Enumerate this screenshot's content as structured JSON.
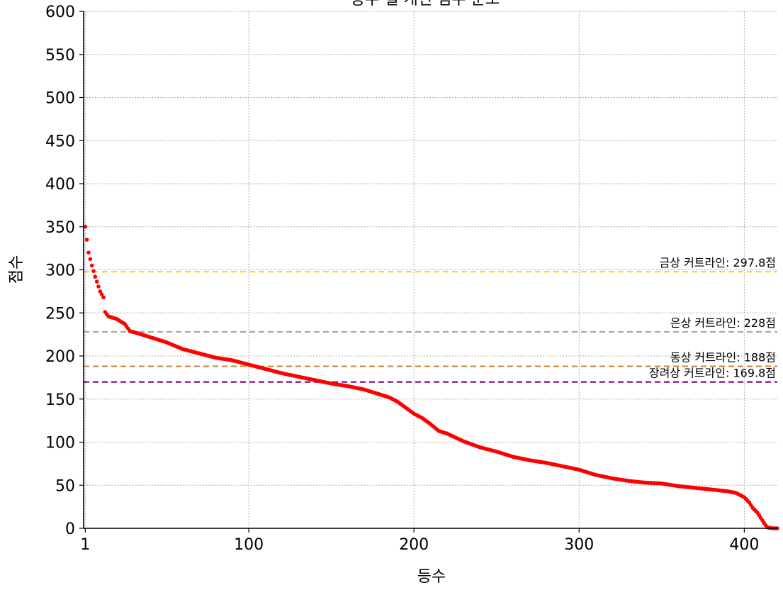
{
  "chart_data": {
    "type": "scatter",
    "title": "등수 별 개인 점수 분포",
    "xlabel": "등수",
    "ylabel": "점수",
    "xlim": [
      0,
      420
    ],
    "ylim": [
      0,
      600
    ],
    "x_ticks": [
      1,
      100,
      200,
      300,
      400
    ],
    "y_ticks": [
      0,
      50,
      100,
      150,
      200,
      250,
      300,
      350,
      400,
      450,
      500,
      550,
      600
    ],
    "grid": true,
    "point_color": "#ff0000",
    "reference_lines": [
      {
        "label": "금상 커트라인: 297.8점",
        "value": 297.8,
        "color": "#ffd700"
      },
      {
        "label": "은상 커트라인: 228점",
        "value": 228,
        "color": "#a9a9a9"
      },
      {
        "label": "동상 커트라인: 188점",
        "value": 188,
        "color": "#cd853f"
      },
      {
        "label": "장려상 커트라인: 169.8점",
        "value": 169.8,
        "color": "#800080"
      }
    ],
    "curve_points": [
      [
        1,
        350
      ],
      [
        2,
        335
      ],
      [
        3,
        320
      ],
      [
        5,
        305
      ],
      [
        7,
        292
      ],
      [
        10,
        275
      ],
      [
        12,
        268
      ],
      [
        13,
        251
      ],
      [
        15,
        246
      ],
      [
        20,
        243
      ],
      [
        25,
        237
      ],
      [
        28,
        229
      ],
      [
        35,
        225
      ],
      [
        40,
        222
      ],
      [
        45,
        219
      ],
      [
        50,
        216
      ],
      [
        55,
        212
      ],
      [
        60,
        208
      ],
      [
        70,
        203
      ],
      [
        80,
        198
      ],
      [
        90,
        195
      ],
      [
        100,
        190
      ],
      [
        110,
        185
      ],
      [
        120,
        180
      ],
      [
        130,
        176
      ],
      [
        140,
        172
      ],
      [
        150,
        168
      ],
      [
        160,
        165
      ],
      [
        170,
        161
      ],
      [
        180,
        155
      ],
      [
        185,
        152
      ],
      [
        190,
        147
      ],
      [
        195,
        140
      ],
      [
        200,
        133
      ],
      [
        205,
        128
      ],
      [
        210,
        121
      ],
      [
        215,
        113
      ],
      [
        220,
        110
      ],
      [
        230,
        101
      ],
      [
        240,
        94
      ],
      [
        250,
        89
      ],
      [
        260,
        83
      ],
      [
        270,
        79
      ],
      [
        280,
        76
      ],
      [
        290,
        72
      ],
      [
        300,
        68
      ],
      [
        310,
        62
      ],
      [
        320,
        58
      ],
      [
        330,
        55
      ],
      [
        340,
        53
      ],
      [
        350,
        52
      ],
      [
        360,
        49
      ],
      [
        370,
        47
      ],
      [
        380,
        45
      ],
      [
        390,
        43
      ],
      [
        395,
        41
      ],
      [
        400,
        36
      ],
      [
        403,
        30
      ],
      [
        405,
        24
      ],
      [
        408,
        18
      ],
      [
        410,
        12
      ],
      [
        412,
        6
      ],
      [
        414,
        1
      ],
      [
        417,
        0
      ],
      [
        420,
        0
      ]
    ]
  }
}
